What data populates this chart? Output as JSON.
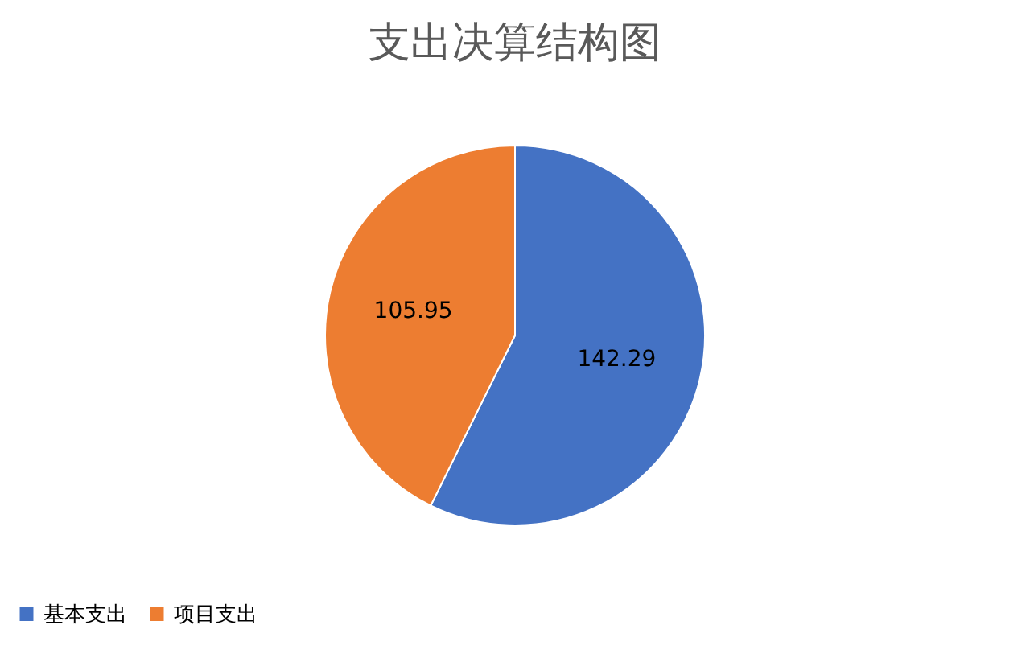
{
  "chart_data": {
    "type": "pie",
    "title": "支出决算结构图",
    "categories": [
      "基本支出",
      "项目支出"
    ],
    "values": [
      142.29,
      105.95
    ],
    "colors": [
      "#4472c4",
      "#ed7d31"
    ],
    "data_labels": true,
    "legend": "bottom"
  }
}
